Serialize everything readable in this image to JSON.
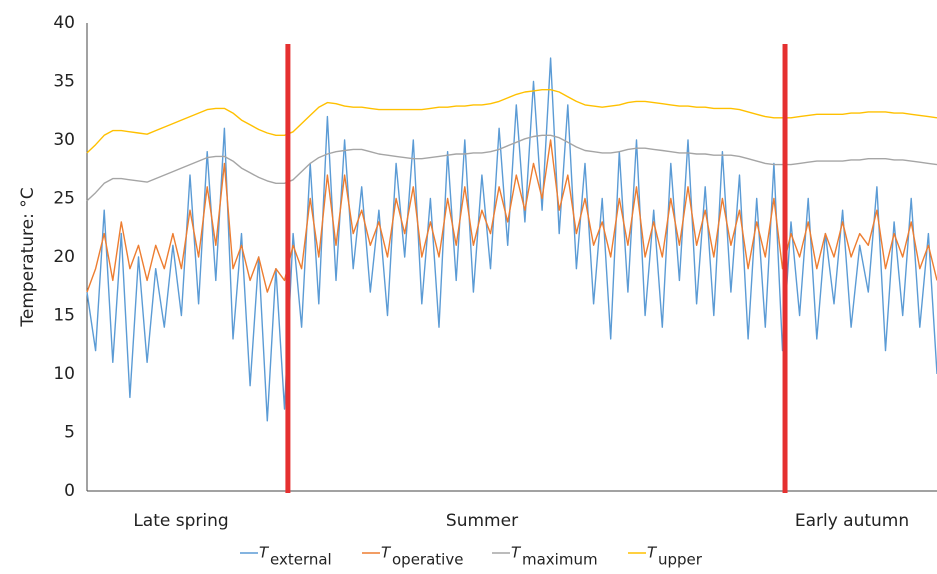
{
  "chart_data": {
    "type": "line",
    "y_label": "Temperature: °C",
    "ylim": [
      0,
      40
    ],
    "yticks": [
      0,
      5,
      10,
      15,
      20,
      25,
      30,
      35,
      40
    ],
    "region_labels": [
      "Late spring",
      "Summer",
      "Early autumn"
    ],
    "dividers": [
      23.4,
      81.3
    ],
    "divider_color": "#e53030",
    "legend_symbol": "T",
    "series": [
      {
        "name": "external",
        "color": "#5b9bd5",
        "values": [
          17,
          12,
          24,
          11,
          22,
          8,
          20,
          11,
          19,
          14,
          21,
          15,
          27,
          16,
          29,
          18,
          31,
          13,
          22,
          9,
          20,
          6,
          19,
          7,
          22,
          14,
          28,
          16,
          32,
          18,
          30,
          19,
          26,
          17,
          24,
          15,
          28,
          20,
          30,
          16,
          25,
          14,
          29,
          18,
          30,
          17,
          27,
          19,
          31,
          21,
          33,
          23,
          35,
          24,
          37,
          22,
          33,
          19,
          28,
          16,
          25,
          13,
          29,
          17,
          30,
          15,
          24,
          14,
          28,
          18,
          30,
          16,
          26,
          15,
          29,
          17,
          27,
          13,
          25,
          14,
          28,
          12,
          23,
          15,
          25,
          13,
          22,
          16,
          24,
          14,
          21,
          17,
          26,
          12,
          23,
          15,
          25,
          14,
          22,
          10
        ]
      },
      {
        "name": "operative",
        "color": "#ed7d31",
        "values": [
          17,
          19,
          22,
          18,
          23,
          19,
          21,
          18,
          21,
          19,
          22,
          19,
          24,
          20,
          26,
          21,
          28,
          19,
          21,
          18,
          20,
          17,
          19,
          18,
          21,
          19,
          25,
          20,
          27,
          21,
          27,
          22,
          24,
          21,
          23,
          20,
          25,
          22,
          26,
          20,
          23,
          20,
          25,
          21,
          26,
          21,
          24,
          22,
          26,
          23,
          27,
          24,
          28,
          25,
          30,
          24,
          27,
          22,
          25,
          21,
          23,
          20,
          25,
          21,
          26,
          20,
          23,
          20,
          25,
          21,
          26,
          21,
          24,
          20,
          25,
          21,
          24,
          19,
          23,
          20,
          25,
          19,
          22,
          20,
          23,
          19,
          22,
          20,
          23,
          20,
          22,
          21,
          24,
          19,
          22,
          20,
          23,
          19,
          21,
          18
        ]
      },
      {
        "name": "maximum",
        "color": "#a5a5a5",
        "values": [
          24.8,
          25.5,
          26.3,
          26.7,
          26.7,
          26.6,
          26.5,
          26.4,
          26.7,
          27,
          27.3,
          27.6,
          27.9,
          28.2,
          28.5,
          28.6,
          28.6,
          28.2,
          27.6,
          27.2,
          26.8,
          26.5,
          26.3,
          26.3,
          26.6,
          27.3,
          28,
          28.5,
          28.8,
          29,
          29.1,
          29.2,
          29.2,
          29,
          28.8,
          28.7,
          28.6,
          28.5,
          28.4,
          28.4,
          28.5,
          28.6,
          28.7,
          28.8,
          28.8,
          28.9,
          28.9,
          29,
          29.2,
          29.5,
          29.8,
          30.1,
          30.3,
          30.4,
          30.4,
          30.2,
          29.8,
          29.4,
          29.1,
          29,
          28.9,
          28.9,
          29,
          29.2,
          29.3,
          29.3,
          29.2,
          29.1,
          29,
          28.9,
          28.9,
          28.8,
          28.8,
          28.7,
          28.7,
          28.7,
          28.6,
          28.4,
          28.2,
          28,
          27.9,
          27.9,
          27.9,
          28,
          28.1,
          28.2,
          28.2,
          28.2,
          28.2,
          28.3,
          28.3,
          28.4,
          28.4,
          28.4,
          28.3,
          28.3,
          28.2,
          28.1,
          28,
          27.9
        ]
      },
      {
        "name": "upper",
        "color": "#ffc000",
        "values": [
          28.9,
          29.6,
          30.4,
          30.8,
          30.8,
          30.7,
          30.6,
          30.5,
          30.8,
          31.1,
          31.4,
          31.7,
          32,
          32.3,
          32.6,
          32.7,
          32.7,
          32.3,
          31.7,
          31.3,
          30.9,
          30.6,
          30.4,
          30.4,
          30.7,
          31.4,
          32.1,
          32.8,
          33.2,
          33.1,
          32.9,
          32.8,
          32.8,
          32.7,
          32.6,
          32.6,
          32.6,
          32.6,
          32.6,
          32.6,
          32.7,
          32.8,
          32.8,
          32.9,
          32.9,
          33,
          33,
          33.1,
          33.3,
          33.6,
          33.9,
          34.1,
          34.2,
          34.3,
          34.3,
          34.1,
          33.7,
          33.3,
          33,
          32.9,
          32.8,
          32.9,
          33,
          33.2,
          33.3,
          33.3,
          33.2,
          33.1,
          33,
          32.9,
          32.9,
          32.8,
          32.8,
          32.7,
          32.7,
          32.7,
          32.6,
          32.4,
          32.2,
          32,
          31.9,
          31.9,
          31.9,
          32,
          32.1,
          32.2,
          32.2,
          32.2,
          32.2,
          32.3,
          32.3,
          32.4,
          32.4,
          32.4,
          32.3,
          32.3,
          32.2,
          32.1,
          32,
          31.9
        ]
      }
    ]
  }
}
